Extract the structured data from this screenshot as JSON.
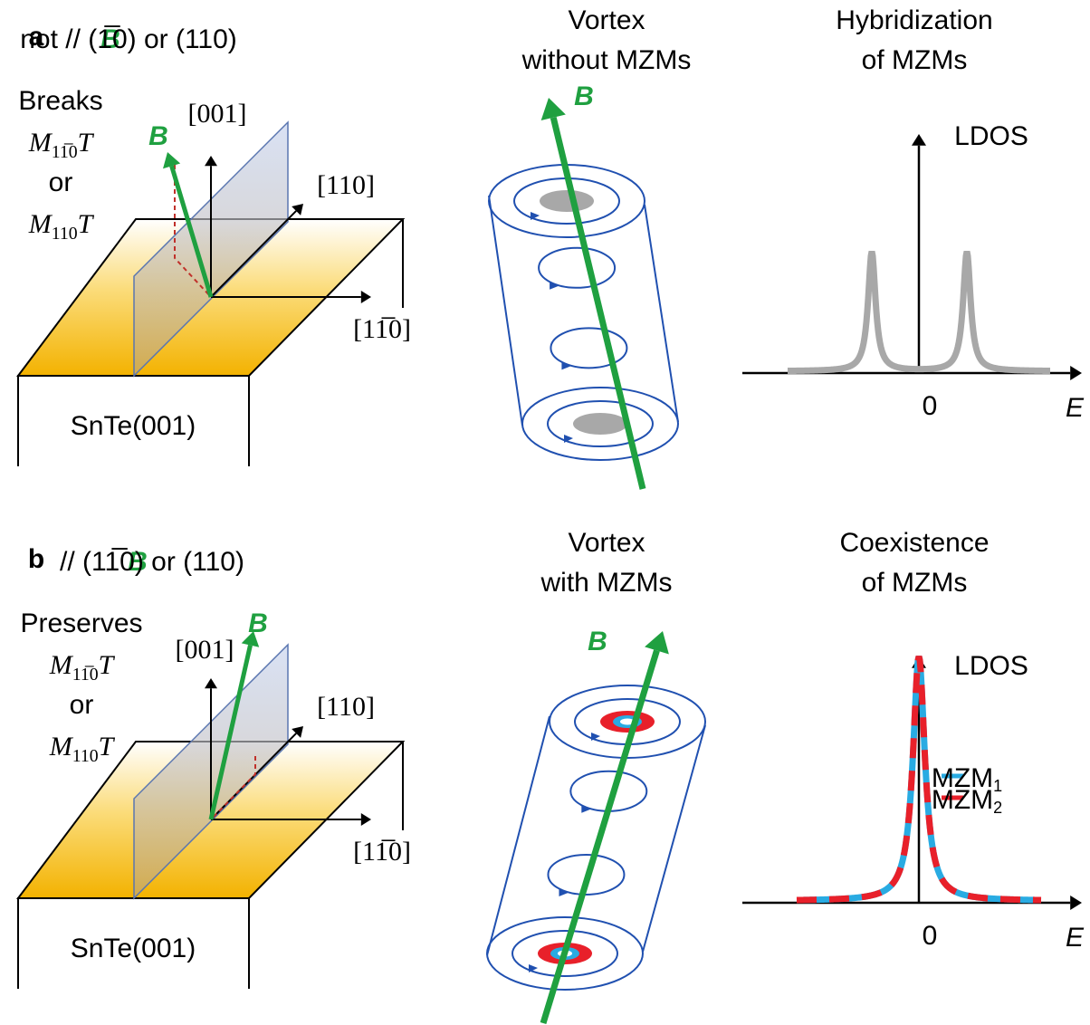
{
  "panels": [
    {
      "label": "a",
      "condition": {
        "symbol": "B",
        "text": "not // (1̅0) or (110)"
      },
      "symmetry": {
        "verb": "Breaks",
        "connector": "or",
        "terms": [
          {
            "base": "M",
            "sub": "11̅0",
            "suffix": "T"
          },
          {
            "base": "M",
            "sub": "110",
            "suffix": "T"
          }
        ]
      },
      "axes": {
        "z": "[001]",
        "y": "[110]",
        "x": "[11̅0]",
        "field": "B"
      },
      "substrate": "SnTe(001)",
      "vortex": {
        "title": [
          "Vortex",
          "without MZMs"
        ],
        "field": "B"
      },
      "ldos": {
        "title": [
          "Hybridization",
          "of MZMs"
        ],
        "y_label": "LDOS",
        "x_zero": "0",
        "x_label": "E"
      }
    },
    {
      "label": "b",
      "condition": {
        "symbol": "B",
        "text": "// (11̅0) or (110)"
      },
      "symmetry": {
        "verb": "Preserves",
        "connector": "or",
        "terms": [
          {
            "base": "M",
            "sub": "11̅0",
            "suffix": "T"
          },
          {
            "base": "M",
            "sub": "110",
            "suffix": "T"
          }
        ]
      },
      "axes": {
        "z": "[001]",
        "y": "[110]",
        "x": "[11̅0]",
        "field": "B"
      },
      "substrate": "SnTe(001)",
      "vortex": {
        "title": [
          "Vortex",
          "with MZMs"
        ],
        "field": "B"
      },
      "ldos": {
        "title": [
          "Coexistence",
          "of MZMs"
        ],
        "y_label": "LDOS",
        "x_zero": "0",
        "x_label": "E",
        "legend": [
          {
            "base": "MZM",
            "sub": "1"
          },
          {
            "base": "MZM",
            "sub": "2"
          }
        ]
      }
    }
  ]
}
